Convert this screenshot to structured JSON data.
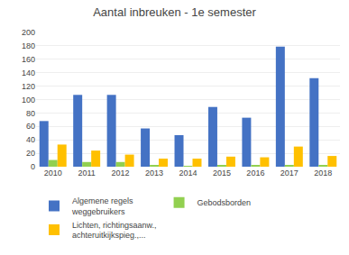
{
  "chart_data": {
    "type": "bar",
    "title": "Aantal inbreuken - 1e semester",
    "categories": [
      "2010",
      "2011",
      "2012",
      "2013",
      "2014",
      "2015",
      "2016",
      "2017",
      "2018"
    ],
    "series": [
      {
        "name": "Algemene regels\nweggebruikers",
        "color": "#4472c4",
        "values": [
          68,
          107,
          107,
          57,
          47,
          89,
          73,
          179,
          132
        ]
      },
      {
        "name": "Gebodsborden",
        "color": "#92d050",
        "values": [
          10,
          7,
          7,
          2,
          1,
          2,
          2,
          2,
          2
        ]
      },
      {
        "name": "Lichten, richtingsaanw.,\nachteruitkijkspieg.,...",
        "color": "#ffc000",
        "values": [
          33,
          24,
          18,
          12,
          12,
          15,
          14,
          30,
          16
        ]
      }
    ],
    "ylim": [
      0,
      200
    ],
    "yticks": [
      0,
      20,
      40,
      60,
      80,
      100,
      120,
      140,
      160,
      180,
      200
    ],
    "grid": true,
    "legend": "lower left"
  }
}
